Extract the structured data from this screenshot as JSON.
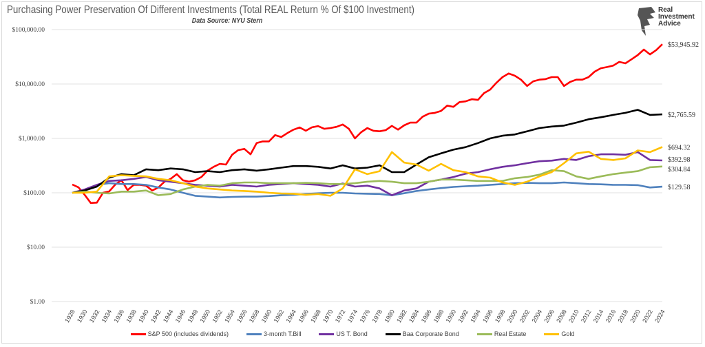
{
  "chart_data": {
    "type": "line",
    "title": "Purchasing Power Preservation Of Different Investments (Total REAL Return % Of $100 Investment)",
    "subtitle": "Data Source: NYU Stern",
    "xlabel": "",
    "ylabel": "",
    "yscale": "log",
    "ylim": [
      1,
      100000
    ],
    "xlim": [
      1928,
      2024
    ],
    "y_ticks": [
      "$1.00",
      "$10.00",
      "$100.00",
      "$1,000.00",
      "$10,000.00",
      "$100,000.00"
    ],
    "x_ticks": [
      "1928",
      "1930",
      "1932",
      "1934",
      "1936",
      "1938",
      "1940",
      "1942",
      "1944",
      "1946",
      "1948",
      "1950",
      "1952",
      "1954",
      "1956",
      "1958",
      "1960",
      "1962",
      "1964",
      "1966",
      "1968",
      "1970",
      "1972",
      "1974",
      "1976",
      "1978",
      "1980",
      "1982",
      "1984",
      "1986",
      "1988",
      "1990",
      "1992",
      "1994",
      "1996",
      "1998",
      "2000",
      "2002",
      "2004",
      "2006",
      "2008",
      "2010",
      "2012",
      "2014",
      "2016",
      "2018",
      "2020",
      "2022",
      "2024"
    ],
    "grid": "horizontal",
    "legend_position": "bottom",
    "series": [
      {
        "name": "S&P 500 (includes dividends)",
        "color": "#ff0000",
        "end_label": "$53,945.92",
        "x": [
          1928,
          1929,
          1930,
          1931,
          1932,
          1933,
          1934,
          1935,
          1936,
          1937,
          1938,
          1939,
          1940,
          1941,
          1942,
          1943,
          1944,
          1945,
          1946,
          1947,
          1948,
          1949,
          1950,
          1951,
          1952,
          1953,
          1954,
          1955,
          1956,
          1957,
          1958,
          1959,
          1960,
          1961,
          1962,
          1963,
          1964,
          1965,
          1966,
          1967,
          1968,
          1969,
          1970,
          1971,
          1972,
          1973,
          1974,
          1975,
          1976,
          1977,
          1978,
          1979,
          1980,
          1981,
          1982,
          1983,
          1984,
          1985,
          1986,
          1987,
          1988,
          1989,
          1990,
          1991,
          1992,
          1993,
          1994,
          1995,
          1996,
          1997,
          1998,
          1999,
          2000,
          2001,
          2002,
          2003,
          2004,
          2005,
          2006,
          2007,
          2008,
          2009,
          2010,
          2011,
          2012,
          2013,
          2014,
          2015,
          2016,
          2017,
          2018,
          2019,
          2020,
          2021,
          2022,
          2023,
          2024
        ],
        "y": [
          142,
          126,
          92,
          65,
          66,
          100,
          106,
          142,
          170,
          112,
          140,
          140,
          135,
          110,
          125,
          160,
          180,
          220,
          170,
          160,
          170,
          195,
          255,
          300,
          340,
          330,
          500,
          610,
          640,
          510,
          820,
          880,
          880,
          1150,
          1060,
          1250,
          1450,
          1590,
          1380,
          1600,
          1680,
          1500,
          1550,
          1630,
          1800,
          1500,
          1000,
          1300,
          1550,
          1380,
          1350,
          1420,
          1700,
          1450,
          1740,
          1950,
          1950,
          2500,
          2850,
          2950,
          3200,
          4000,
          3800,
          4650,
          4800,
          5250,
          5100,
          6800,
          7900,
          10500,
          13400,
          15600,
          14200,
          12000,
          9200,
          11200,
          12000,
          12300,
          13400,
          13400,
          9200,
          10900,
          12000,
          12000,
          13400,
          16900,
          19500,
          20500,
          21800,
          25500,
          24000,
          28500,
          34000,
          43000,
          35000,
          42000,
          53945.92
        ]
      },
      {
        "name": "3-month T.Bill",
        "color": "#4f81bd",
        "end_label": "$129.58",
        "x": [
          1928,
          1930,
          1932,
          1934,
          1936,
          1938,
          1940,
          1942,
          1944,
          1946,
          1948,
          1950,
          1952,
          1954,
          1956,
          1958,
          1960,
          1962,
          1964,
          1966,
          1968,
          1970,
          1972,
          1974,
          1976,
          1978,
          1980,
          1982,
          1984,
          1986,
          1988,
          1990,
          1992,
          1994,
          1996,
          1998,
          2000,
          2002,
          2004,
          2006,
          2008,
          2010,
          2012,
          2014,
          2016,
          2018,
          2020,
          2022,
          2024
        ],
        "y": [
          100,
          110,
          140,
          150,
          145,
          145,
          140,
          125,
          115,
          100,
          88,
          85,
          82,
          84,
          85,
          85,
          87,
          90,
          92,
          95,
          98,
          100,
          100,
          97,
          96,
          95,
          90,
          98,
          108,
          115,
          122,
          128,
          132,
          135,
          140,
          145,
          150,
          152,
          150,
          150,
          155,
          150,
          145,
          143,
          140,
          140,
          138,
          125,
          129.58
        ]
      },
      {
        "name": "US T. Bond",
        "color": "#7030a0",
        "end_label": "$392.98",
        "x": [
          1928,
          1930,
          1932,
          1934,
          1936,
          1938,
          1940,
          1942,
          1944,
          1946,
          1948,
          1950,
          1952,
          1954,
          1956,
          1958,
          1960,
          1962,
          1964,
          1966,
          1968,
          1970,
          1972,
          1974,
          1976,
          1978,
          1980,
          1982,
          1984,
          1986,
          1988,
          1990,
          1992,
          1994,
          1996,
          1998,
          2000,
          2002,
          2004,
          2006,
          2008,
          2010,
          2012,
          2014,
          2016,
          2018,
          2020,
          2022,
          2024
        ],
        "y": [
          100,
          115,
          140,
          165,
          170,
          180,
          195,
          170,
          160,
          150,
          140,
          135,
          130,
          140,
          135,
          130,
          140,
          145,
          150,
          145,
          140,
          130,
          148,
          130,
          135,
          120,
          90,
          110,
          120,
          160,
          175,
          195,
          225,
          240,
          270,
          300,
          320,
          350,
          380,
          390,
          420,
          400,
          470,
          510,
          510,
          500,
          560,
          400,
          392.98
        ]
      },
      {
        "name": "Baa Corporate Bond",
        "color": "#000000",
        "end_label": "$2,765.59",
        "x": [
          1928,
          1930,
          1932,
          1934,
          1936,
          1938,
          1940,
          1942,
          1944,
          1946,
          1948,
          1950,
          1952,
          1954,
          1956,
          1958,
          1960,
          1962,
          1964,
          1966,
          1968,
          1970,
          1972,
          1974,
          1976,
          1978,
          1980,
          1982,
          1984,
          1986,
          1988,
          1990,
          1992,
          1994,
          1996,
          1998,
          2000,
          2002,
          2004,
          2006,
          2008,
          2010,
          2012,
          2014,
          2016,
          2018,
          2020,
          2022,
          2024
        ],
        "y": [
          100,
          110,
          130,
          190,
          220,
          210,
          270,
          260,
          280,
          270,
          240,
          250,
          240,
          260,
          270,
          255,
          270,
          290,
          310,
          310,
          300,
          280,
          320,
          280,
          290,
          320,
          240,
          240,
          330,
          450,
          530,
          620,
          690,
          820,
          1000,
          1120,
          1180,
          1350,
          1550,
          1650,
          1720,
          1950,
          2250,
          2450,
          2700,
          2950,
          3350,
          2700,
          2765.59
        ]
      },
      {
        "name": "Real Estate",
        "color": "#9bbb59",
        "end_label": "$304.84",
        "x": [
          1928,
          1930,
          1932,
          1934,
          1936,
          1938,
          1940,
          1942,
          1944,
          1946,
          1948,
          1950,
          1952,
          1954,
          1956,
          1958,
          1960,
          1962,
          1964,
          1966,
          1968,
          1970,
          1972,
          1974,
          1976,
          1978,
          1980,
          1982,
          1984,
          1986,
          1988,
          1990,
          1992,
          1994,
          1996,
          1998,
          2000,
          2002,
          2004,
          2006,
          2008,
          2010,
          2012,
          2014,
          2016,
          2018,
          2020,
          2022,
          2024
        ],
        "y": [
          100,
          105,
          100,
          97,
          105,
          105,
          110,
          90,
          95,
          115,
          130,
          140,
          135,
          150,
          155,
          155,
          150,
          150,
          150,
          152,
          150,
          145,
          145,
          150,
          160,
          165,
          160,
          150,
          150,
          160,
          175,
          175,
          170,
          165,
          165,
          165,
          185,
          195,
          215,
          260,
          250,
          200,
          180,
          200,
          220,
          235,
          250,
          295,
          304.84
        ]
      },
      {
        "name": "Gold",
        "color": "#ffc000",
        "end_label": "$694.32",
        "x": [
          1928,
          1930,
          1932,
          1934,
          1936,
          1938,
          1940,
          1942,
          1944,
          1946,
          1948,
          1950,
          1952,
          1954,
          1956,
          1958,
          1960,
          1962,
          1964,
          1966,
          1968,
          1970,
          1972,
          1974,
          1976,
          1978,
          1980,
          1982,
          1984,
          1986,
          1988,
          1990,
          1992,
          1994,
          1996,
          1998,
          2000,
          2002,
          2004,
          2006,
          2008,
          2010,
          2012,
          2014,
          2016,
          2018,
          2020,
          2022,
          2024
        ],
        "y": [
          100,
          100,
          105,
          200,
          210,
          205,
          200,
          180,
          170,
          150,
          130,
          120,
          115,
          110,
          108,
          105,
          100,
          97,
          96,
          92,
          95,
          88,
          120,
          270,
          220,
          250,
          560,
          360,
          330,
          255,
          340,
          260,
          240,
          200,
          190,
          155,
          140,
          160,
          200,
          240,
          350,
          530,
          570,
          420,
          400,
          430,
          600,
          560,
          694.32
        ]
      }
    ]
  },
  "logo": {
    "text_line1": "Real",
    "text_line2": "Investment",
    "text_line3": "Advice"
  }
}
